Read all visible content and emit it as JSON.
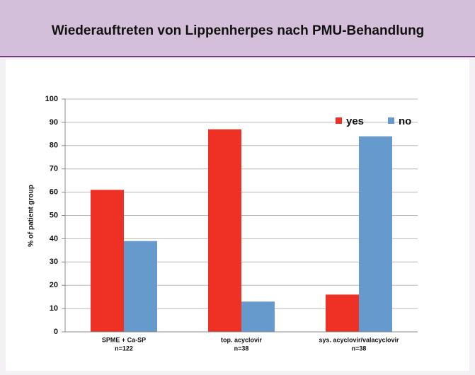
{
  "chart_data": {
    "type": "bar",
    "title": "Wiederauftreten von Lippenherpes nach PMU-Behandlung",
    "ylabel": "% of patient group",
    "categories": [
      [
        "SPME + Ca-SP",
        "n=122"
      ],
      [
        "top. acyclovir",
        "n=38"
      ],
      [
        "sys. acyclovir/valacyclovir",
        "n=38"
      ]
    ],
    "series": [
      {
        "name": "yes",
        "color": "#ee3124",
        "values": [
          61,
          87,
          16
        ]
      },
      {
        "name": "no",
        "color": "#6699cc",
        "values": [
          39,
          13,
          84
        ]
      }
    ],
    "ylim": [
      0,
      100
    ],
    "yticks": [
      0,
      10,
      20,
      30,
      40,
      50,
      60,
      70,
      80,
      90,
      100
    ],
    "grid": true,
    "legend": "upper right"
  }
}
